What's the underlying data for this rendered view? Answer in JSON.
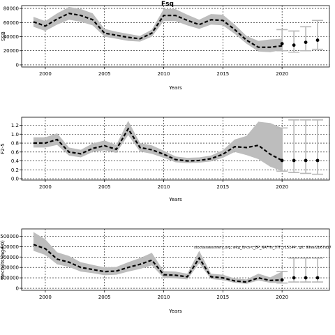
{
  "figure_title": "Fsq",
  "annotation": "stockassessment.org, wkg_fb-cs-c_BP_NAFHs_STF, r15144 , git: 99aaf2b67a37",
  "chart_data": [
    {
      "type": "line",
      "title": "Fsq",
      "xlabel": "Years",
      "ylabel": "SSB",
      "xlim": [
        1998,
        2024
      ],
      "ylim": [
        -3000,
        84000
      ],
      "xticks": [
        2000,
        2005,
        2010,
        2015,
        2020
      ],
      "yticks": [
        0,
        20000,
        40000,
        60000,
        80000
      ],
      "ytick_labels": [
        "0",
        "20000",
        "40000",
        "60000",
        "80000"
      ],
      "grid": true,
      "series": [
        {
          "x": [
            1999,
            2000,
            2001,
            2002,
            2003,
            2004,
            2005,
            2006,
            2007,
            2008,
            2009,
            2010,
            2011,
            2012,
            2013,
            2014,
            2015,
            2016,
            2017,
            2018,
            2019,
            2020
          ],
          "values": [
            61000,
            55000,
            65000,
            73000,
            70000,
            64000,
            45000,
            42000,
            39000,
            37000,
            45000,
            70000,
            70000,
            63000,
            57000,
            64000,
            63000,
            50000,
            35000,
            25000,
            25000,
            27000
          ],
          "lower": [
            54000,
            48000,
            57000,
            64000,
            61000,
            56000,
            40000,
            37000,
            34000,
            33000,
            40000,
            62000,
            62000,
            56000,
            51000,
            57000,
            56000,
            44000,
            30000,
            19000,
            18000,
            21000
          ],
          "upper": [
            68000,
            62000,
            73000,
            82000,
            79000,
            73000,
            51000,
            47000,
            44000,
            41000,
            50000,
            79000,
            79000,
            71000,
            64000,
            72000,
            71000,
            57000,
            41000,
            34000,
            36000,
            37000
          ]
        }
      ],
      "forecast": {
        "x": [
          2020,
          2021,
          2022,
          2023
        ],
        "values": [
          30000,
          28000,
          32000,
          35000
        ],
        "lower": [
          20000,
          18000,
          20000,
          22000
        ],
        "upper": [
          50000,
          48000,
          54000,
          63000
        ]
      }
    },
    {
      "type": "line",
      "title": "",
      "xlabel": "Years",
      "ylabel": "F2-5",
      "xlim": [
        1998,
        2024
      ],
      "ylim": [
        -0.03,
        1.38
      ],
      "xticks": [
        2000,
        2005,
        2010,
        2015,
        2020
      ],
      "yticks": [
        0.0,
        0.2,
        0.4,
        0.6,
        0.8,
        1.0,
        1.2
      ],
      "ytick_labels": [
        "0.0",
        "0.2",
        "0.4",
        "0.6",
        "0.8",
        "1.0",
        "1.2"
      ],
      "grid": true,
      "series": [
        {
          "x": [
            1999,
            2000,
            2001,
            2002,
            2003,
            2004,
            2005,
            2006,
            2007,
            2008,
            2009,
            2010,
            2011,
            2012,
            2013,
            2014,
            2015,
            2016,
            2017,
            2018,
            2019,
            2020
          ],
          "values": [
            0.8,
            0.8,
            0.88,
            0.6,
            0.56,
            0.68,
            0.74,
            0.66,
            1.12,
            0.7,
            0.65,
            0.55,
            0.43,
            0.4,
            0.41,
            0.45,
            0.55,
            0.72,
            0.7,
            0.75,
            0.55,
            0.41
          ],
          "lower": [
            0.7,
            0.7,
            0.76,
            0.52,
            0.48,
            0.6,
            0.64,
            0.58,
            0.98,
            0.61,
            0.56,
            0.47,
            0.37,
            0.35,
            0.36,
            0.39,
            0.47,
            0.6,
            0.53,
            0.44,
            0.27,
            0.17
          ],
          "upper": [
            0.93,
            0.93,
            1.02,
            0.7,
            0.65,
            0.79,
            0.86,
            0.76,
            1.3,
            0.8,
            0.75,
            0.63,
            0.5,
            0.47,
            0.48,
            0.52,
            0.64,
            0.88,
            0.96,
            1.28,
            1.25,
            1.14
          ]
        }
      ],
      "forecast": {
        "x": [
          2020,
          2021,
          2022,
          2023
        ],
        "values": [
          0.41,
          0.41,
          0.41,
          0.41
        ],
        "lower": [
          0.17,
          0.14,
          0.12,
          0.1
        ],
        "upper": [
          1.14,
          1.32,
          1.32,
          1.32
        ]
      }
    },
    {
      "type": "line",
      "title": "",
      "xlabel": "Years",
      "ylabel": "Recruits (age 0)",
      "xlim": [
        1998,
        2024
      ],
      "ylim": [
        -20000,
        570000
      ],
      "xticks": [
        2000,
        2005,
        2010,
        2015,
        2020
      ],
      "yticks": [
        0,
        100000,
        200000,
        300000,
        400000,
        500000
      ],
      "ytick_labels": [
        "0",
        "100000",
        "200000",
        "300000",
        "400000",
        "500000"
      ],
      "grid": true,
      "series": [
        {
          "x": [
            1999,
            2000,
            2001,
            2002,
            2003,
            2004,
            2005,
            2006,
            2007,
            2008,
            2009,
            2010,
            2011,
            2012,
            2013,
            2014,
            2015,
            2016,
            2017,
            2018,
            2019,
            2020
          ],
          "values": [
            420000,
            380000,
            280000,
            250000,
            200000,
            180000,
            160000,
            165000,
            200000,
            230000,
            270000,
            130000,
            125000,
            110000,
            290000,
            110000,
            100000,
            70000,
            60000,
            100000,
            75000,
            80000
          ],
          "lower": [
            360000,
            320000,
            230000,
            205000,
            160000,
            145000,
            125000,
            130000,
            160000,
            185000,
            220000,
            100000,
            95000,
            85000,
            240000,
            88000,
            78000,
            52000,
            43000,
            75000,
            52000,
            50000
          ],
          "upper": [
            540000,
            470000,
            345000,
            310000,
            250000,
            225000,
            200000,
            205000,
            250000,
            290000,
            340000,
            165000,
            160000,
            140000,
            360000,
            140000,
            130000,
            95000,
            85000,
            140000,
            105000,
            160000
          ]
        }
      ],
      "forecast": {
        "x": [
          2020,
          2021,
          2022,
          2023
        ],
        "values": [
          80000,
          100000,
          100000,
          100000
        ],
        "lower": [
          50000,
          60000,
          60000,
          60000
        ],
        "upper": [
          160000,
          290000,
          290000,
          290000
        ]
      }
    }
  ]
}
